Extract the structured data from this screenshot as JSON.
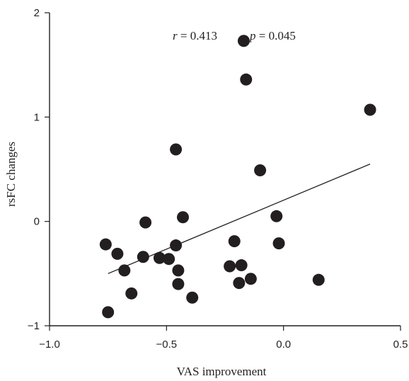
{
  "chart_data": {
    "type": "scatter",
    "xlabel": "VAS improvement",
    "ylabel": "rsFC changes",
    "xlim": [
      -1.0,
      0.5
    ],
    "ylim": [
      -1,
      2
    ],
    "x_ticks": [
      -1.0,
      -0.5,
      0.0,
      0.5
    ],
    "x_tick_labels": [
      "−1.0",
      "−0.5",
      "0.0",
      "0.5"
    ],
    "y_ticks": [
      -1,
      0,
      1,
      2
    ],
    "y_tick_labels": [
      "−1",
      "0",
      "1",
      "2"
    ],
    "grid": false,
    "annotation": {
      "r_symbol": "r",
      "r_text": " = 0.413",
      "p_symbol": "p",
      "p_text": " = 0.045"
    },
    "trendline": {
      "x": [
        -0.75,
        0.37
      ],
      "y": [
        -0.5,
        0.55
      ]
    },
    "points": [
      {
        "x": -0.76,
        "y": -0.22
      },
      {
        "x": -0.71,
        "y": -0.31
      },
      {
        "x": -0.68,
        "y": -0.47
      },
      {
        "x": -0.75,
        "y": -0.87
      },
      {
        "x": -0.65,
        "y": -0.69
      },
      {
        "x": -0.6,
        "y": -0.34
      },
      {
        "x": -0.59,
        "y": -0.01
      },
      {
        "x": -0.53,
        "y": -0.35
      },
      {
        "x": -0.49,
        "y": -0.36
      },
      {
        "x": -0.46,
        "y": -0.23
      },
      {
        "x": -0.45,
        "y": -0.47
      },
      {
        "x": -0.45,
        "y": -0.6
      },
      {
        "x": -0.43,
        "y": 0.04
      },
      {
        "x": -0.39,
        "y": -0.73
      },
      {
        "x": -0.46,
        "y": 0.69
      },
      {
        "x": -0.23,
        "y": -0.43
      },
      {
        "x": -0.21,
        "y": -0.19
      },
      {
        "x": -0.19,
        "y": -0.59
      },
      {
        "x": -0.18,
        "y": -0.42
      },
      {
        "x": -0.14,
        "y": -0.55
      },
      {
        "x": -0.17,
        "y": 1.73
      },
      {
        "x": -0.16,
        "y": 1.36
      },
      {
        "x": -0.1,
        "y": 0.49
      },
      {
        "x": -0.03,
        "y": 0.05
      },
      {
        "x": -0.02,
        "y": -0.21
      },
      {
        "x": 0.15,
        "y": -0.56
      },
      {
        "x": 0.37,
        "y": 1.07
      }
    ]
  }
}
